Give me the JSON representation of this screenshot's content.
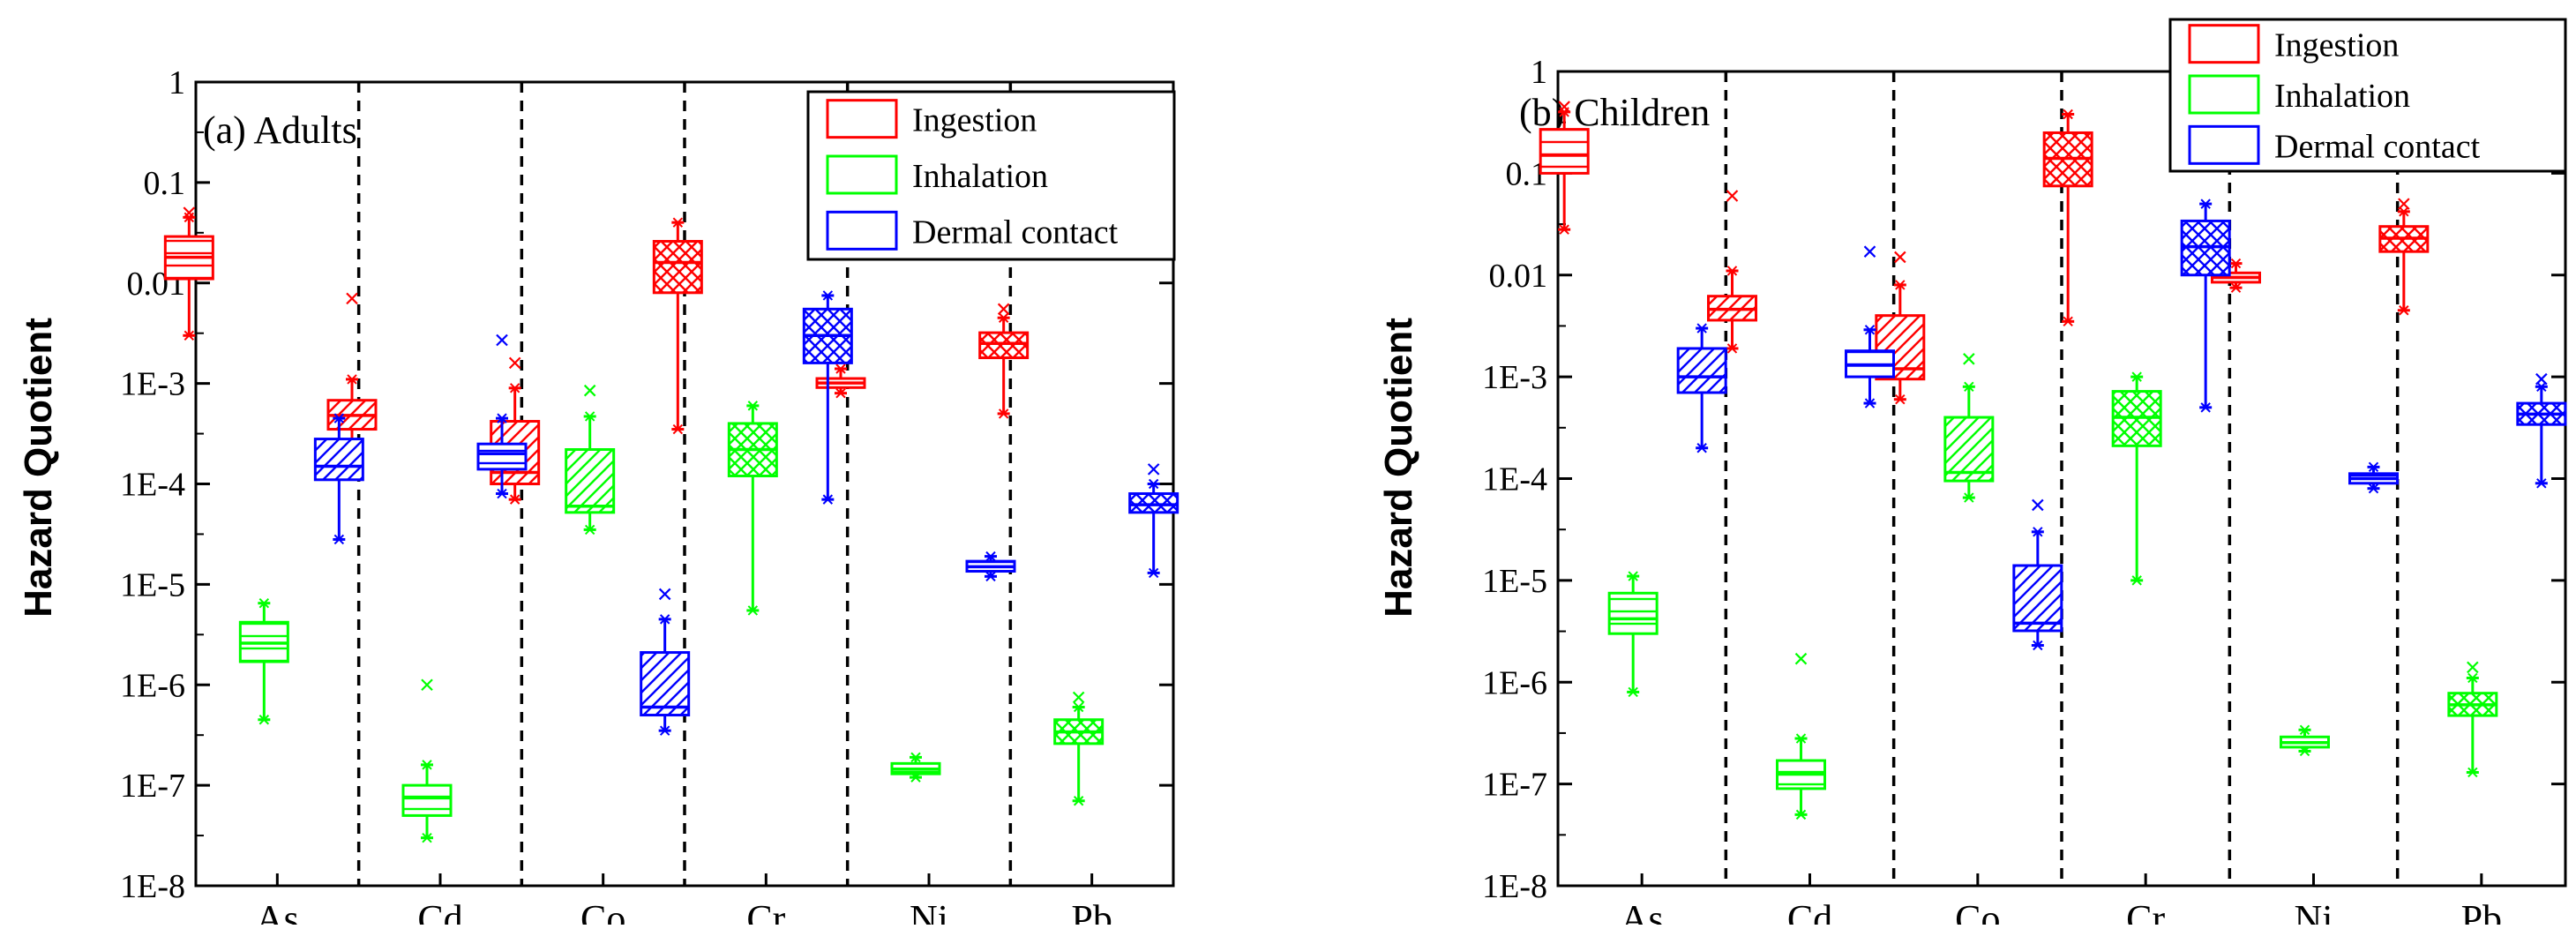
{
  "colors": {
    "Ingestion": "#ff0000",
    "Inhalation": "#00ff00",
    "Dermal contact": "#0000ff"
  },
  "chart_data": [
    {
      "type": "box",
      "title": "(a) Adults",
      "ylabel": "Hazard Quotient",
      "yscale": "log",
      "ylim": [
        1e-08,
        1
      ],
      "yticks": [
        "1E-8",
        "1E-7",
        "1E-6",
        "1E-5",
        "1E-4",
        "1E-3",
        "0.01",
        "0.1",
        "1"
      ],
      "categories": [
        "As",
        "Cd",
        "Co",
        "Cr",
        "Ni",
        "Pb"
      ],
      "legend": {
        "position": "top-right",
        "entries": [
          "Ingestion",
          "Inhalation",
          "Dermal contact"
        ]
      },
      "series": [
        {
          "name": "Ingestion",
          "pattern": "hatch",
          "boxes": [
            {
              "min": 0.003,
              "q1": 0.011,
              "median": 0.018,
              "q3": 0.029,
              "max": 0.045,
              "outliers": [
                0.05
              ]
            },
            {
              "min": 0.0002,
              "q1": 0.00035,
              "median": 0.00048,
              "q3": 0.00068,
              "max": 0.0011,
              "outliers": [
                0.007
              ]
            },
            {
              "min": 7e-05,
              "q1": 0.0001,
              "median": 0.00013,
              "q3": 0.00042,
              "max": 0.0009,
              "outliers": [
                0.0016
              ]
            },
            {
              "min": 0.00035,
              "q1": 0.008,
              "median": 0.016,
              "q3": 0.026,
              "max": 0.04,
              "outliers": []
            },
            {
              "min": 0.0008,
              "q1": 0.00091,
              "median": 0.00101,
              "q3": 0.00112,
              "max": 0.0014,
              "outliers": []
            },
            {
              "min": 0.0005,
              "q1": 0.0018,
              "median": 0.0025,
              "q3": 0.0032,
              "max": 0.0045,
              "outliers": [
                0.0055
              ]
            }
          ]
        },
        {
          "name": "Inhalation",
          "pattern": "hatch",
          "boxes": [
            {
              "min": 4.5e-07,
              "q1": 1.7e-06,
              "median": 2.6e-06,
              "q3": 4.2e-06,
              "max": 6.5e-06,
              "outliers": []
            },
            {
              "min": 3e-08,
              "q1": 5e-08,
              "median": 7.5e-08,
              "q3": 1e-07,
              "max": 1.6e-07,
              "outliers": [
                1e-06
              ]
            },
            {
              "min": 3.5e-05,
              "q1": 5.2e-05,
              "median": 6e-05,
              "q3": 0.00022,
              "max": 0.00047,
              "outliers": [
                0.00085
              ]
            },
            {
              "min": 5.5e-06,
              "q1": 0.00012,
              "median": 0.00022,
              "q3": 0.0004,
              "max": 0.0006,
              "outliers": []
            },
            {
              "min": 1.2e-07,
              "q1": 1.3e-07,
              "median": 1.45e-07,
              "q3": 1.65e-07,
              "max": 1.9e-07,
              "outliers": []
            },
            {
              "min": 7e-08,
              "q1": 2.6e-07,
              "median": 3.4e-07,
              "q3": 4.5e-07,
              "max": 6e-07,
              "outliers": [
                7.5e-07
              ]
            }
          ]
        },
        {
          "name": "Dermal contact",
          "pattern": "hatch",
          "boxes": [
            {
              "min": 2.8e-05,
              "q1": 0.00011,
              "median": 0.00015,
              "q3": 0.00028,
              "max": 0.00045,
              "outliers": []
            },
            {
              "min": 8e-05,
              "q1": 0.00014,
              "median": 0.0002,
              "q3": 0.00025,
              "max": 0.00045,
              "outliers": [
                0.0027
              ]
            },
            {
              "min": 3.5e-07,
              "q1": 5e-07,
              "median": 6e-07,
              "q3": 2.1e-06,
              "max": 4.5e-06,
              "outliers": [
                8e-06
              ]
            },
            {
              "min": 7e-05,
              "q1": 0.0016,
              "median": 0.003,
              "q3": 0.0055,
              "max": 0.0075,
              "outliers": []
            },
            {
              "min": 1.2e-05,
              "q1": 1.35e-05,
              "median": 1.5e-05,
              "q3": 1.7e-05,
              "max": 1.9e-05,
              "outliers": []
            },
            {
              "min": 1.3e-05,
              "q1": 5.2e-05,
              "median": 6.2e-05,
              "q3": 8e-05,
              "max": 0.0001,
              "outliers": [
                0.00014
              ]
            }
          ]
        }
      ]
    },
    {
      "type": "box",
      "title": "(b) Children",
      "ylabel": "Hazard Quotient",
      "yscale": "log",
      "ylim": [
        1e-08,
        1
      ],
      "yticks": [
        "1E-8",
        "1E-7",
        "1E-6",
        "1E-5",
        "1E-4",
        "1E-3",
        "0.01",
        "0.1",
        "1"
      ],
      "categories": [
        "As",
        "Cd",
        "Co",
        "Cr",
        "Ni",
        "Pb"
      ],
      "legend": {
        "position": "top-right",
        "entries": [
          "Ingestion",
          "Inhalation",
          "Dermal contact"
        ]
      },
      "series": [
        {
          "name": "Ingestion",
          "pattern": "hatch",
          "boxes": [
            {
              "min": 0.028,
              "q1": 0.1,
              "median": 0.15,
              "q3": 0.27,
              "max": 0.4,
              "outliers": [
                0.45
              ]
            },
            {
              "min": 0.0019,
              "q1": 0.0036,
              "median": 0.0046,
              "q3": 0.0062,
              "max": 0.011,
              "outliers": [
                0.06
              ]
            },
            {
              "min": 0.0006,
              "q1": 0.00095,
              "median": 0.0012,
              "q3": 0.004,
              "max": 0.008,
              "outliers": [
                0.015
              ]
            },
            {
              "min": 0.0035,
              "q1": 0.075,
              "median": 0.14,
              "q3": 0.25,
              "max": 0.38,
              "outliers": []
            },
            {
              "min": 0.0075,
              "q1": 0.0085,
              "median": 0.0095,
              "q3": 0.0105,
              "max": 0.013,
              "outliers": []
            },
            {
              "min": 0.0045,
              "q1": 0.017,
              "median": 0.023,
              "q3": 0.03,
              "max": 0.042,
              "outliers": [
                0.05
              ]
            }
          ]
        },
        {
          "name": "Inhalation",
          "pattern": "hatch",
          "boxes": [
            {
              "min": 8e-07,
              "q1": 3e-06,
              "median": 4.2e-06,
              "q3": 7.5e-06,
              "max": 1.1e-05,
              "outliers": []
            },
            {
              "min": 5e-08,
              "q1": 9e-08,
              "median": 1.25e-07,
              "q3": 1.7e-07,
              "max": 2.8e-07,
              "outliers": [
                1.7e-06
              ]
            },
            {
              "min": 6.5e-05,
              "q1": 9.5e-05,
              "median": 0.000115,
              "q3": 0.0004,
              "max": 0.0008,
              "outliers": [
                0.0015
              ]
            },
            {
              "min": 1e-05,
              "q1": 0.00021,
              "median": 0.0004,
              "q3": 0.00072,
              "max": 0.001,
              "outliers": []
            },
            {
              "min": 2.1e-07,
              "q1": 2.3e-07,
              "median": 2.55e-07,
              "q3": 2.9e-07,
              "max": 3.4e-07,
              "outliers": []
            },
            {
              "min": 1.3e-07,
              "q1": 4.7e-07,
              "median": 6e-07,
              "q3": 7.8e-07,
              "max": 1.1e-06,
              "outliers": [
                1.4e-06
              ]
            }
          ]
        },
        {
          "name": "Dermal contact",
          "pattern": "hatch",
          "boxes": [
            {
              "min": 0.0002,
              "q1": 0.0007,
              "median": 0.001,
              "q3": 0.0019,
              "max": 0.003,
              "outliers": []
            },
            {
              "min": 0.00055,
              "q1": 0.001,
              "median": 0.0013,
              "q3": 0.0018,
              "max": 0.0029,
              "outliers": [
                0.017
              ]
            },
            {
              "min": 2.3e-06,
              "q1": 3.2e-06,
              "median": 3.8e-06,
              "q3": 1.4e-05,
              "max": 3e-05,
              "outliers": [
                5.5e-05
              ]
            },
            {
              "min": 0.0005,
              "q1": 0.01,
              "median": 0.019,
              "q3": 0.034,
              "max": 0.05,
              "outliers": []
            },
            {
              "min": 8e-05,
              "q1": 9e-05,
              "median": 0.0001,
              "q3": 0.000112,
              "max": 0.00013,
              "outliers": []
            },
            {
              "min": 9e-05,
              "q1": 0.00034,
              "median": 0.00043,
              "q3": 0.00055,
              "max": 0.0008,
              "outliers": [
                0.00095
              ]
            }
          ]
        }
      ]
    }
  ]
}
